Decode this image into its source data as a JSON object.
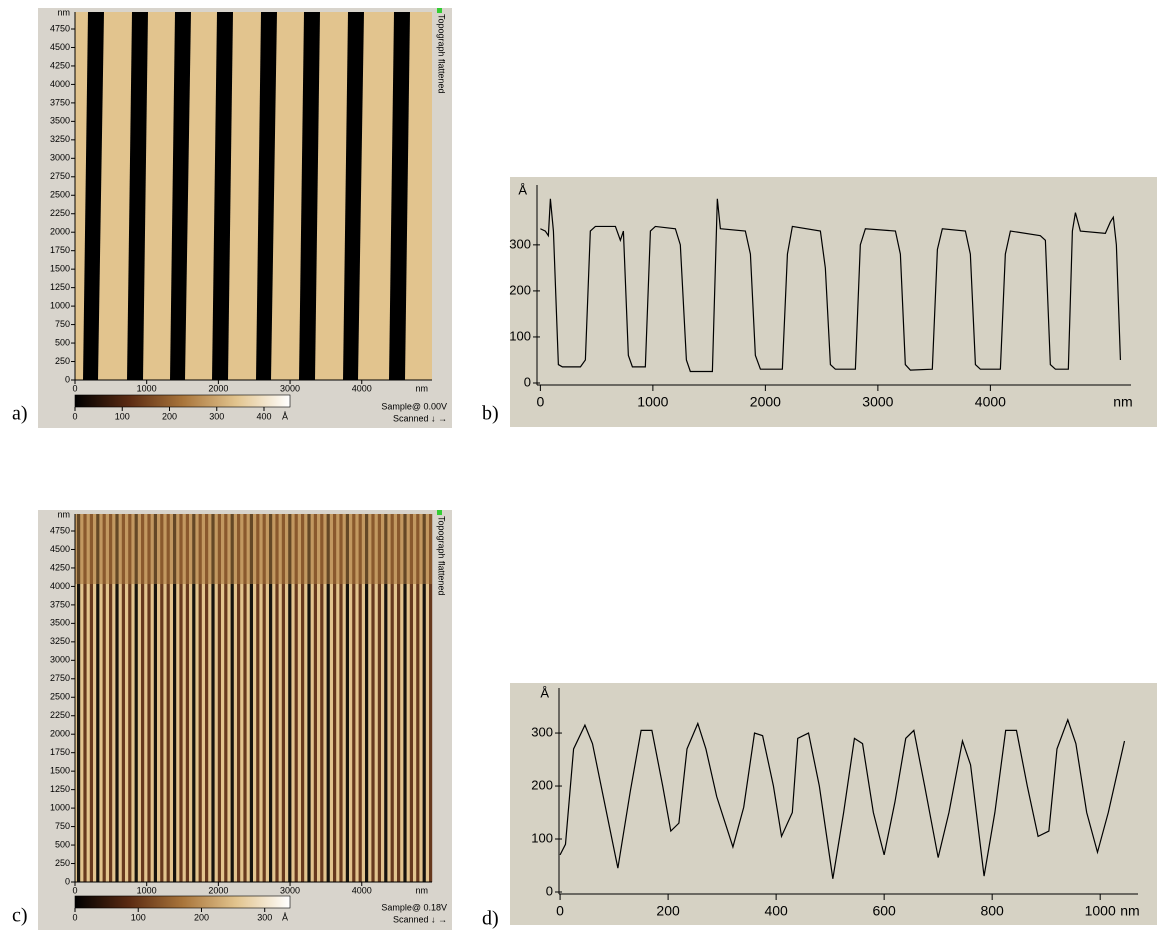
{
  "chart_data": [
    {
      "type": "heatmap",
      "panel_label": "a)",
      "side_label": "Topograph flattened",
      "footer": [
        "Sample@ 0.00V",
        "Scanned ↓ →"
      ],
      "x_unit": "nm",
      "y_unit": "nm",
      "xlim": [
        0,
        4980
      ],
      "ylim": [
        0,
        4980
      ],
      "xticks": [
        0,
        1000,
        2000,
        3000,
        4000
      ],
      "yticks": [
        0,
        250,
        500,
        750,
        1000,
        1250,
        1500,
        1750,
        2000,
        2250,
        2500,
        2750,
        3000,
        3250,
        3500,
        3750,
        4000,
        4250,
        4500,
        4750
      ],
      "colorbar_unit": "Å",
      "colorbar_lim": [
        0,
        455
      ],
      "colorbar_ticks": [
        0,
        100,
        200,
        300,
        400
      ],
      "colormap": [
        "#000000",
        "#5a2a12",
        "#a8743a",
        "#e2c48e",
        "#ffffff"
      ]
    },
    {
      "type": "line",
      "panel_label": "b)",
      "x_unit": "nm",
      "y_unit": "Å",
      "color": "#000000",
      "xlim": [
        -30,
        5250
      ],
      "ylim": [
        0,
        430
      ],
      "xticks": [
        0,
        1000,
        2000,
        3000,
        4000
      ],
      "yticks": [
        0,
        100,
        200,
        300
      ],
      "x": [
        0,
        44,
        71,
        89,
        116,
        160,
        196,
        356,
        400,
        444,
        489,
        667,
        711,
        738,
        782,
        818,
        933,
        978,
        1022,
        1200,
        1244,
        1298,
        1333,
        1529,
        1573,
        1600,
        1822,
        1867,
        1911,
        1956,
        2151,
        2196,
        2240,
        2489,
        2533,
        2578,
        2622,
        2800,
        2844,
        2889,
        3156,
        3200,
        3244,
        3289,
        3484,
        3529,
        3573,
        3778,
        3822,
        3867,
        3911,
        4089,
        4133,
        4178,
        4444,
        4489,
        4533,
        4578,
        4693,
        4729,
        4756,
        4800,
        5022,
        5067,
        5093,
        5120,
        5156
      ],
      "values": [
        335,
        330,
        320,
        400,
        330,
        40,
        35,
        35,
        50,
        330,
        340,
        340,
        310,
        330,
        60,
        35,
        35,
        330,
        340,
        335,
        300,
        50,
        25,
        25,
        400,
        335,
        330,
        280,
        60,
        30,
        30,
        280,
        340,
        330,
        250,
        40,
        30,
        30,
        300,
        335,
        330,
        280,
        40,
        28,
        30,
        290,
        335,
        330,
        280,
        40,
        30,
        30,
        280,
        330,
        320,
        310,
        40,
        30,
        30,
        330,
        370,
        330,
        325,
        350,
        360,
        300,
        50
      ]
    },
    {
      "type": "heatmap",
      "panel_label": "c)",
      "side_label": "Topograph flattened",
      "footer": [
        "Sample@ 0.18V",
        "Scanned ↓ →"
      ],
      "x_unit": "nm",
      "y_unit": "nm",
      "xlim": [
        0,
        4980
      ],
      "ylim": [
        0,
        4980
      ],
      "xticks": [
        0,
        1000,
        2000,
        3000,
        4000
      ],
      "yticks": [
        0,
        250,
        500,
        750,
        1000,
        1250,
        1500,
        1750,
        2000,
        2250,
        2500,
        2750,
        3000,
        3250,
        3500,
        3750,
        4000,
        4250,
        4500,
        4750
      ],
      "colorbar_unit": "Å",
      "colorbar_lim": [
        0,
        340
      ],
      "colorbar_ticks": [
        0,
        100,
        200,
        300
      ],
      "colormap": [
        "#000000",
        "#5a2a12",
        "#a8743a",
        "#e2c48e",
        "#ffffff"
      ]
    },
    {
      "type": "line",
      "panel_label": "d)",
      "x_unit": "nm",
      "y_unit": "Å",
      "color": "#000000",
      "xlim": [
        -2,
        1070
      ],
      "ylim": [
        0,
        385
      ],
      "xticks": [
        0,
        200,
        400,
        600,
        800,
        1000
      ],
      "yticks": [
        0,
        100,
        200,
        300
      ],
      "x": [
        0,
        10,
        25,
        46,
        60,
        80,
        107,
        130,
        150,
        170,
        190,
        205,
        220,
        235,
        255,
        270,
        290,
        320,
        340,
        360,
        375,
        395,
        410,
        430,
        440,
        460,
        480,
        505,
        525,
        545,
        560,
        580,
        600,
        620,
        640,
        655,
        675,
        700,
        720,
        745,
        760,
        785,
        805,
        825,
        845,
        865,
        885,
        905,
        920,
        940,
        955,
        975,
        995,
        1015,
        1045
      ],
      "values": [
        70,
        90,
        270,
        315,
        280,
        180,
        45,
        190,
        305,
        305,
        200,
        115,
        130,
        270,
        318,
        270,
        180,
        85,
        160,
        300,
        295,
        200,
        105,
        150,
        290,
        300,
        200,
        25,
        150,
        290,
        280,
        150,
        70,
        170,
        290,
        305,
        200,
        65,
        150,
        285,
        240,
        30,
        150,
        305,
        305,
        200,
        105,
        115,
        270,
        325,
        280,
        150,
        75,
        150,
        285
      ]
    }
  ]
}
